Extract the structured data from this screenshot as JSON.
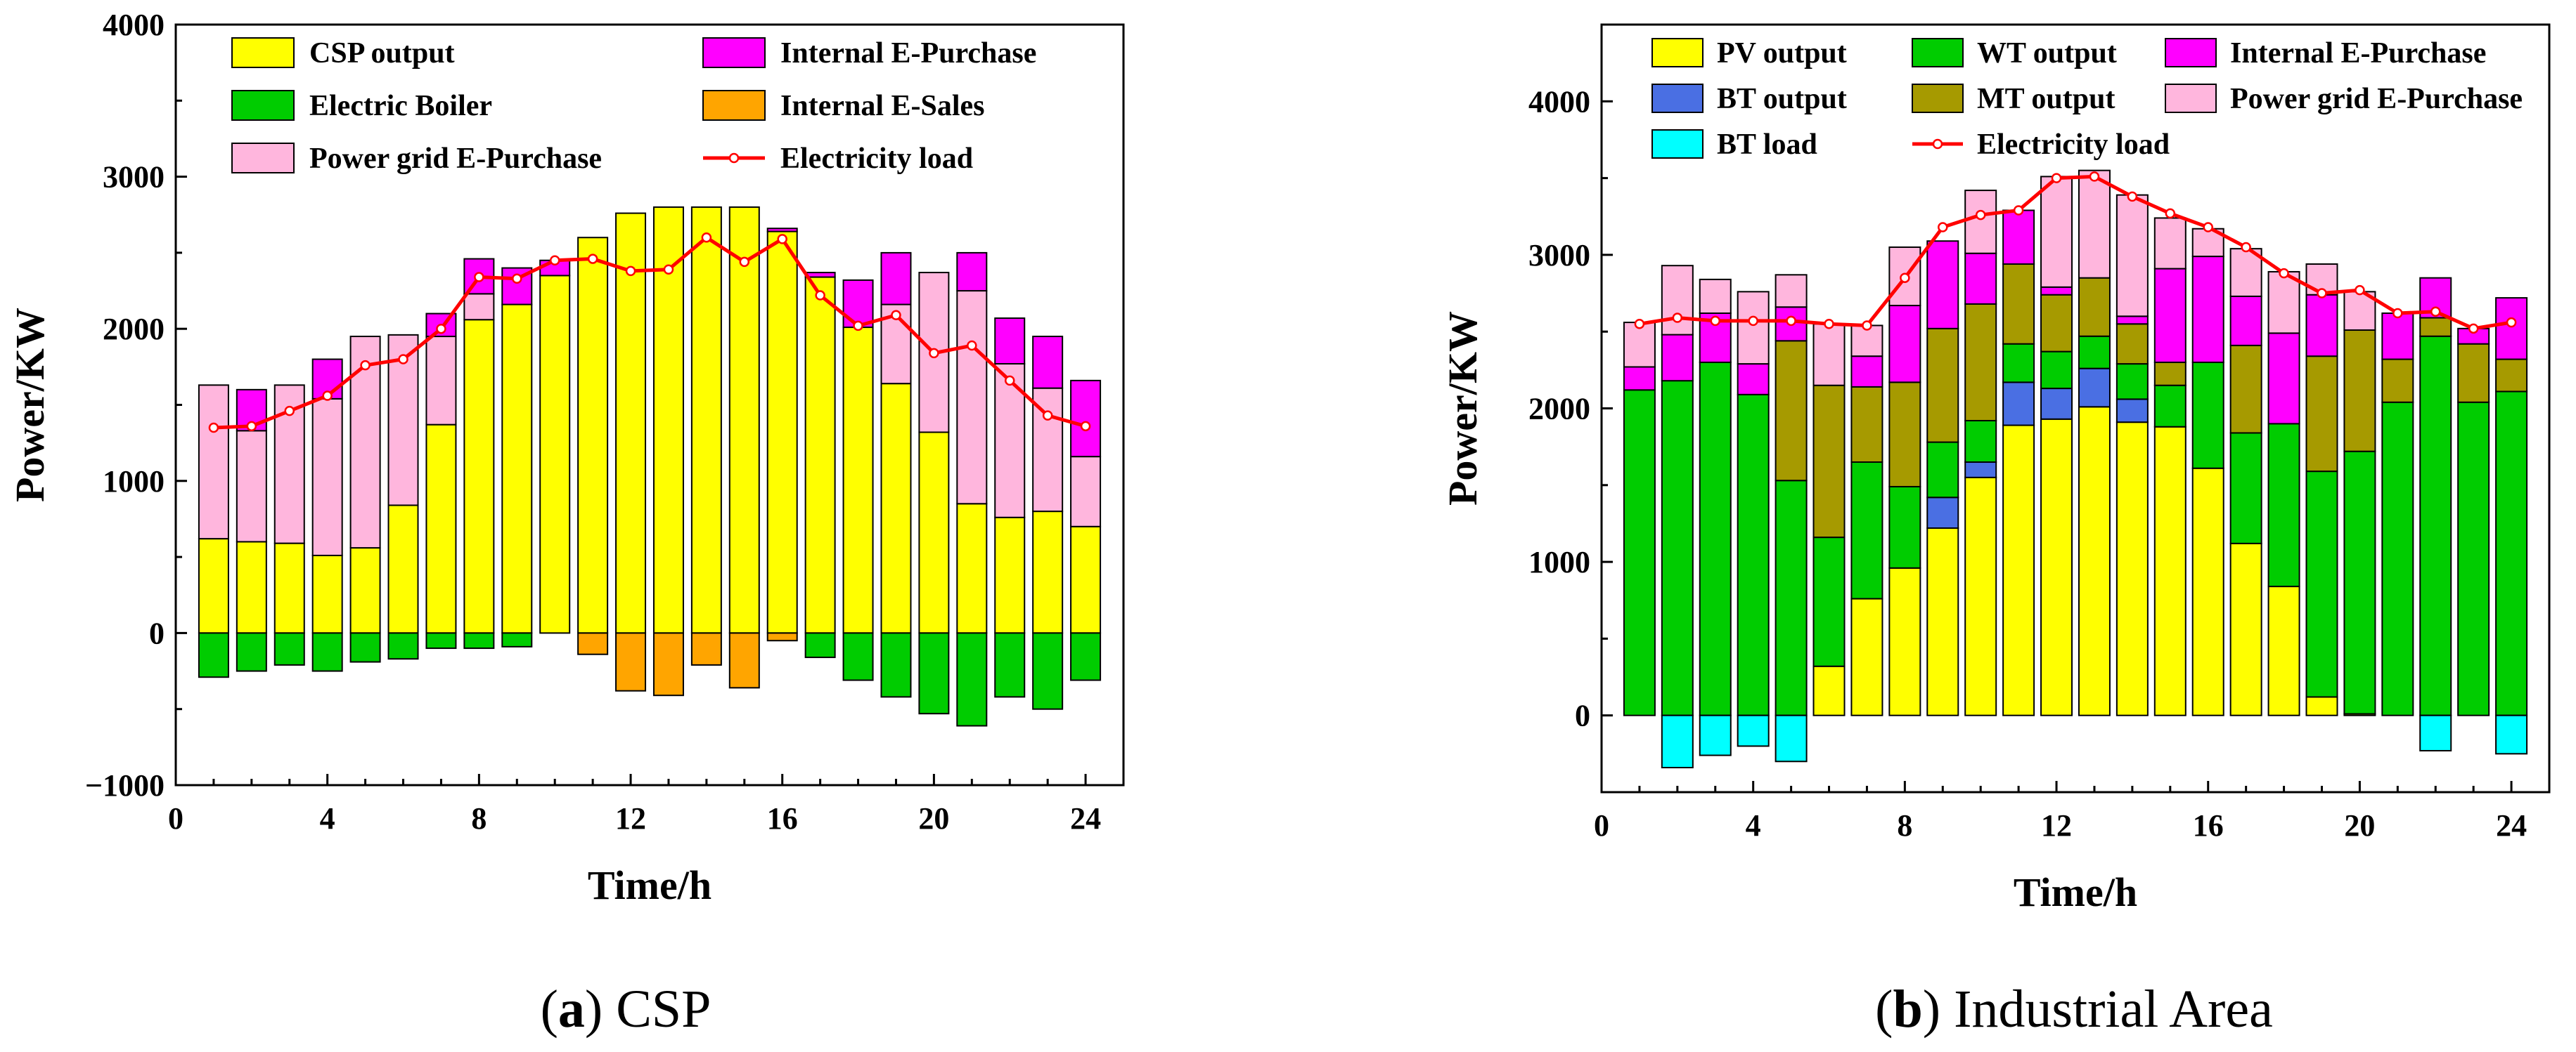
{
  "colors": {
    "csp": "#FFFF00",
    "pv": "#FFFF00",
    "electric_boiler": "#00CC00",
    "wt": "#00CC00",
    "internal_purchase": "#FF00FF",
    "internal_sales": "#FFA500",
    "grid_purchase": "#FFB6DD",
    "bt_output": "#4A6FE3",
    "bt_load": "#00FFFF",
    "mt_output": "#A69A00",
    "load_line": "#FF0000",
    "load_marker": "#FFFFFF"
  },
  "chart_data": [
    {
      "type": "bar",
      "stacked": true,
      "caption_letter": "a",
      "caption_text": " CSP",
      "xlabel": "Time/h",
      "ylabel": "Power/KW",
      "xlim": [
        0,
        25
      ],
      "ylim": [
        -1000,
        4000
      ],
      "xticks": [
        "0",
        "4",
        "8",
        "12",
        "16",
        "20",
        "24"
      ],
      "xtick_values": [
        0,
        4,
        8,
        12,
        16,
        20,
        24
      ],
      "yticks": [
        "−1000",
        "0",
        "1000",
        "2000",
        "3000",
        "4000"
      ],
      "ytick_values": [
        -1000,
        0,
        1000,
        2000,
        3000,
        4000
      ],
      "x": [
        1,
        2,
        3,
        4,
        5,
        6,
        7,
        8,
        9,
        10,
        11,
        12,
        13,
        14,
        15,
        16,
        17,
        18,
        19,
        20,
        21,
        22,
        23,
        24
      ],
      "series": [
        {
          "name": "CSP output",
          "color_key": "csp",
          "values": [
            620,
            600,
            590,
            510,
            560,
            840,
            1370,
            2060,
            2160,
            2350,
            2600,
            2760,
            2800,
            2800,
            2800,
            2640,
            2340,
            2010,
            1640,
            1320,
            850,
            760,
            800,
            700
          ]
        },
        {
          "name": "Electric Boiler",
          "color_key": "electric_boiler",
          "values": [
            -290,
            -250,
            -210,
            -250,
            -190,
            -170,
            -100,
            -100,
            -90,
            0,
            0,
            0,
            0,
            0,
            0,
            0,
            -160,
            -310,
            -420,
            -530,
            -610,
            -420,
            -500,
            -310
          ]
        },
        {
          "name": "Power grid E-Purchase",
          "color_key": "grid_purchase",
          "values": [
            1010,
            730,
            1040,
            1030,
            1390,
            1120,
            580,
            170,
            0,
            0,
            0,
            0,
            0,
            0,
            0,
            0,
            0,
            0,
            520,
            1050,
            1400,
            1010,
            810,
            460
          ]
        },
        {
          "name": "Internal E-Purchase",
          "color_key": "internal_purchase",
          "values": [
            0,
            270,
            0,
            260,
            0,
            0,
            150,
            230,
            240,
            100,
            0,
            0,
            0,
            0,
            0,
            20,
            30,
            310,
            340,
            0,
            250,
            300,
            340,
            500
          ]
        },
        {
          "name": "Internal E-Sales",
          "color_key": "internal_sales",
          "values": [
            0,
            0,
            0,
            0,
            0,
            0,
            0,
            0,
            0,
            0,
            -140,
            -380,
            -410,
            -210,
            -360,
            -50,
            0,
            0,
            0,
            0,
            0,
            0,
            0,
            0
          ]
        }
      ],
      "line": {
        "name": "Electricity load",
        "values": [
          1350,
          1360,
          1460,
          1560,
          1760,
          1800,
          2000,
          2340,
          2330,
          2450,
          2460,
          2380,
          2390,
          2600,
          2440,
          2590,
          2220,
          2020,
          2090,
          1840,
          1890,
          1660,
          1430,
          1360
        ]
      },
      "legend": [
        {
          "label": "CSP output",
          "color_key": "csp",
          "kind": "box"
        },
        {
          "label": "Internal E-Purchase",
          "color_key": "internal_purchase",
          "kind": "box"
        },
        {
          "label": "Electric Boiler",
          "color_key": "electric_boiler",
          "kind": "box"
        },
        {
          "label": "Internal E-Sales",
          "color_key": "internal_sales",
          "kind": "box"
        },
        {
          "label": "Power grid E-Purchase",
          "color_key": "grid_purchase",
          "kind": "box"
        },
        {
          "label": "Electricity load",
          "color_key": "load_line",
          "kind": "line"
        }
      ],
      "legend_placement": "top-left, two columns"
    },
    {
      "type": "bar",
      "stacked": true,
      "caption_letter": "b",
      "caption_text": " Industrial Area",
      "xlabel": "Time/h",
      "ylabel": "Power/KW",
      "xlim": [
        0,
        25
      ],
      "ylim": [
        -500,
        4500
      ],
      "xticks": [
        "0",
        "4",
        "8",
        "12",
        "16",
        "20",
        "24"
      ],
      "xtick_values": [
        0,
        4,
        8,
        12,
        16,
        20,
        24
      ],
      "yticks": [
        "0",
        "1000",
        "2000",
        "3000",
        "4000"
      ],
      "ytick_values": [
        0,
        1000,
        2000,
        3000,
        4000
      ],
      "x": [
        1,
        2,
        3,
        4,
        5,
        6,
        7,
        8,
        9,
        10,
        11,
        12,
        13,
        14,
        15,
        16,
        17,
        18,
        19,
        20,
        21,
        22,
        23,
        24
      ],
      "series": [
        {
          "name": "PV output",
          "color_key": "pv",
          "values": [
            0,
            0,
            0,
            0,
            0,
            320,
            760,
            960,
            1220,
            1550,
            1890,
            1930,
            2010,
            1910,
            1880,
            1610,
            1120,
            840,
            120,
            10,
            0,
            0,
            0,
            0
          ]
        },
        {
          "name": "BT output",
          "color_key": "bt_output",
          "values": [
            0,
            0,
            0,
            0,
            0,
            0,
            0,
            0,
            200,
            100,
            280,
            200,
            250,
            150,
            0,
            0,
            0,
            0,
            0,
            0,
            0,
            0,
            0,
            0
          ]
        },
        {
          "name": "WT output",
          "color_key": "wt",
          "values": [
            2120,
            2180,
            2300,
            2090,
            1530,
            840,
            890,
            530,
            360,
            270,
            250,
            240,
            210,
            230,
            270,
            690,
            720,
            1060,
            1470,
            1710,
            2040,
            2470,
            2040,
            2110
          ]
        },
        {
          "name": "MT output",
          "color_key": "mt_output",
          "values": [
            0,
            0,
            0,
            0,
            910,
            990,
            490,
            680,
            740,
            760,
            520,
            370,
            380,
            260,
            150,
            0,
            570,
            0,
            750,
            790,
            280,
            120,
            380,
            210
          ]
        },
        {
          "name": "Internal E-Purchase",
          "color_key": "internal_purchase",
          "values": [
            150,
            300,
            320,
            200,
            220,
            0,
            200,
            500,
            570,
            330,
            350,
            50,
            0,
            50,
            610,
            690,
            320,
            590,
            400,
            0,
            300,
            260,
            100,
            400
          ]
        },
        {
          "name": "Power grid E-Purchase",
          "color_key": "grid_purchase",
          "values": [
            290,
            450,
            220,
            470,
            210,
            400,
            200,
            380,
            0,
            410,
            0,
            720,
            700,
            790,
            330,
            180,
            310,
            400,
            200,
            250,
            0,
            0,
            0,
            0
          ]
        },
        {
          "name": "BT load",
          "color_key": "bt_load",
          "values": [
            0,
            -340,
            -260,
            -200,
            -300,
            0,
            0,
            0,
            0,
            0,
            0,
            0,
            0,
            0,
            0,
            0,
            0,
            0,
            0,
            0,
            0,
            -230,
            0,
            -250
          ]
        }
      ],
      "line": {
        "name": "Electricity load",
        "values": [
          2550,
          2590,
          2570,
          2570,
          2570,
          2550,
          2540,
          2850,
          3180,
          3260,
          3290,
          3500,
          3510,
          3380,
          3270,
          3180,
          3050,
          2880,
          2750,
          2770,
          2620,
          2630,
          2520,
          2560
        ]
      },
      "legend": [
        {
          "label": "PV output",
          "color_key": "pv",
          "kind": "box"
        },
        {
          "label": "WT output",
          "color_key": "wt",
          "kind": "box"
        },
        {
          "label": "Internal E-Purchase",
          "color_key": "internal_purchase",
          "kind": "box"
        },
        {
          "label": "BT output",
          "color_key": "bt_output",
          "kind": "box"
        },
        {
          "label": "MT output",
          "color_key": "mt_output",
          "kind": "box"
        },
        {
          "label": "Power grid E-Purchase",
          "color_key": "grid_purchase",
          "kind": "box"
        },
        {
          "label": "BT load",
          "color_key": "bt_load",
          "kind": "box"
        },
        {
          "label": "Electricity load",
          "color_key": "load_line",
          "kind": "line"
        }
      ],
      "legend_placement": "top, three columns"
    }
  ]
}
